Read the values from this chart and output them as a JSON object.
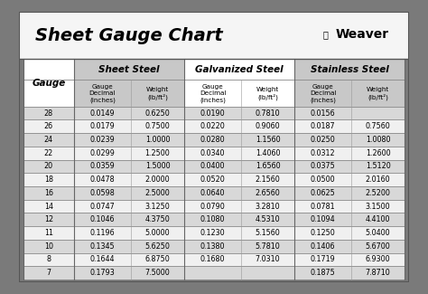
{
  "title": "Sheet Gauge Chart",
  "bg_outer": "#7a7a7a",
  "bg_inner": "#f5f5f5",
  "title_area_bg": "#f0f0f0",
  "header_gray": "#c8c8c8",
  "row_dark": "#d8d8d8",
  "row_light": "#f0f0f0",
  "border_color": "#555555",
  "gauges": [
    28,
    26,
    24,
    22,
    20,
    18,
    16,
    14,
    12,
    11,
    10,
    8,
    7
  ],
  "sheet_steel_decimal": [
    "0.0149",
    "0.0179",
    "0.0239",
    "0.0299",
    "0.0359",
    "0.0478",
    "0.0598",
    "0.0747",
    "0.1046",
    "0.1196",
    "0.1345",
    "0.1644",
    "0.1793"
  ],
  "sheet_steel_weight": [
    "0.6250",
    "0.7500",
    "1.0000",
    "1.2500",
    "1.5000",
    "2.0000",
    "2.5000",
    "3.1250",
    "4.3750",
    "5.0000",
    "5.6250",
    "6.8750",
    "7.5000"
  ],
  "galv_decimal": [
    "0.0190",
    "0.0220",
    "0.0280",
    "0.0340",
    "0.0400",
    "0.0520",
    "0.0640",
    "0.0790",
    "0.1080",
    "0.1230",
    "0.1380",
    "0.1680",
    ""
  ],
  "galv_weight": [
    "0.7810",
    "0.9060",
    "1.1560",
    "1.4060",
    "1.6560",
    "2.1560",
    "2.6560",
    "3.2810",
    "4.5310",
    "5.1560",
    "5.7810",
    "7.0310",
    ""
  ],
  "st_decimal": [
    "0.0156",
    "0.0187",
    "0.0250",
    "0.0312",
    "0.0375",
    "0.0500",
    "0.0625",
    "0.0781",
    "0.1094",
    "0.1250",
    "0.1406",
    "0.1719",
    "0.1875"
  ],
  "st_weight": [
    "",
    "0.7560",
    "1.0080",
    "1.2600",
    "1.5120",
    "2.0160",
    "2.5200",
    "3.1500",
    "4.4100",
    "5.0400",
    "5.6700",
    "6.9300",
    "7.8710"
  ],
  "fig_width": 4.74,
  "fig_height": 3.25,
  "dpi": 100
}
